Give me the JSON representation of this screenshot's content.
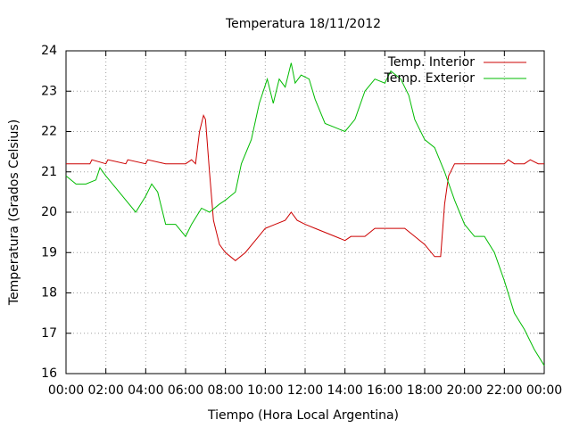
{
  "chart_data": {
    "type": "line",
    "title": "Temperatura 18/11/2012",
    "x_label": "Tiempo (Hora Local Argentina)",
    "y_label": "Temperatura (Grados Celsius)",
    "xlim": [
      0,
      24
    ],
    "ylim": [
      16,
      24
    ],
    "xticks": [
      {
        "value": 0,
        "label": "00:00"
      },
      {
        "value": 2,
        "label": "02:00"
      },
      {
        "value": 4,
        "label": "04:00"
      },
      {
        "value": 6,
        "label": "06:00"
      },
      {
        "value": 8,
        "label": "08:00"
      },
      {
        "value": 10,
        "label": "10:00"
      },
      {
        "value": 12,
        "label": "12:00"
      },
      {
        "value": 14,
        "label": "14:00"
      },
      {
        "value": 16,
        "label": "16:00"
      },
      {
        "value": 18,
        "label": "18:00"
      },
      {
        "value": 20,
        "label": "20:00"
      },
      {
        "value": 22,
        "label": "22:00"
      },
      {
        "value": 24,
        "label": "00:00"
      }
    ],
    "yticks": [
      16,
      17,
      18,
      19,
      20,
      21,
      22,
      23,
      24
    ],
    "grid": true,
    "legend": "top-right",
    "series": [
      {
        "name": "Temp. Interior",
        "color": "#cc0000",
        "x": [
          0,
          1.2,
          1.3,
          2,
          2.1,
          3,
          3.1,
          4,
          4.1,
          5,
          6,
          6.3,
          6.5,
          6.7,
          6.9,
          7.0,
          7.2,
          7.4,
          7.7,
          8.0,
          8.5,
          9.0,
          9.5,
          10.0,
          10.5,
          11.0,
          11.3,
          11.6,
          12,
          12.5,
          13,
          13.5,
          14,
          14.3,
          15,
          15.5,
          16,
          17,
          17.5,
          18,
          18.5,
          18.8,
          19.0,
          19.2,
          19.5,
          20,
          21,
          22,
          22.2,
          22.5,
          23,
          23.3,
          23.7,
          24
        ],
        "values": [
          21.2,
          21.2,
          21.3,
          21.2,
          21.3,
          21.2,
          21.3,
          21.2,
          21.3,
          21.2,
          21.2,
          21.3,
          21.2,
          22.0,
          22.4,
          22.3,
          21.0,
          19.8,
          19.2,
          19.0,
          18.8,
          19.0,
          19.3,
          19.6,
          19.7,
          19.8,
          20.0,
          19.8,
          19.7,
          19.6,
          19.5,
          19.4,
          19.3,
          19.4,
          19.4,
          19.6,
          19.6,
          19.6,
          19.4,
          19.2,
          18.9,
          18.9,
          20.2,
          20.9,
          21.2,
          21.2,
          21.2,
          21.2,
          21.3,
          21.2,
          21.2,
          21.3,
          21.2,
          21.2
        ]
      },
      {
        "name": "Temp. Exterior",
        "color": "#00bb00",
        "x": [
          0,
          0.5,
          1,
          1.5,
          1.7,
          2,
          2.5,
          3,
          3.5,
          4,
          4.3,
          4.6,
          5,
          5.5,
          6,
          6.3,
          6.8,
          7.2,
          7.7,
          8,
          8.5,
          8.8,
          9.3,
          9.7,
          10.1,
          10.4,
          10.7,
          11.0,
          11.3,
          11.5,
          11.8,
          12.2,
          12.5,
          13,
          13.5,
          14,
          14.5,
          15,
          15.5,
          16,
          16.3,
          16.8,
          17.2,
          17.5,
          18,
          18.5,
          19,
          19.5,
          20,
          20.5,
          21,
          21.5,
          22,
          22.5,
          23,
          23.5,
          24
        ],
        "values": [
          20.9,
          20.7,
          20.7,
          20.8,
          21.1,
          20.9,
          20.6,
          20.3,
          20.0,
          20.4,
          20.7,
          20.5,
          19.7,
          19.7,
          19.4,
          19.7,
          20.1,
          20.0,
          20.2,
          20.3,
          20.5,
          21.2,
          21.8,
          22.7,
          23.3,
          22.7,
          23.3,
          23.1,
          23.7,
          23.2,
          23.4,
          23.3,
          22.8,
          22.2,
          22.1,
          22.0,
          22.3,
          23.0,
          23.3,
          23.2,
          23.5,
          23.3,
          22.9,
          22.3,
          21.8,
          21.6,
          21.0,
          20.3,
          19.7,
          19.4,
          19.4,
          19.0,
          18.3,
          17.5,
          17.1,
          16.6,
          16.2
        ]
      }
    ]
  }
}
